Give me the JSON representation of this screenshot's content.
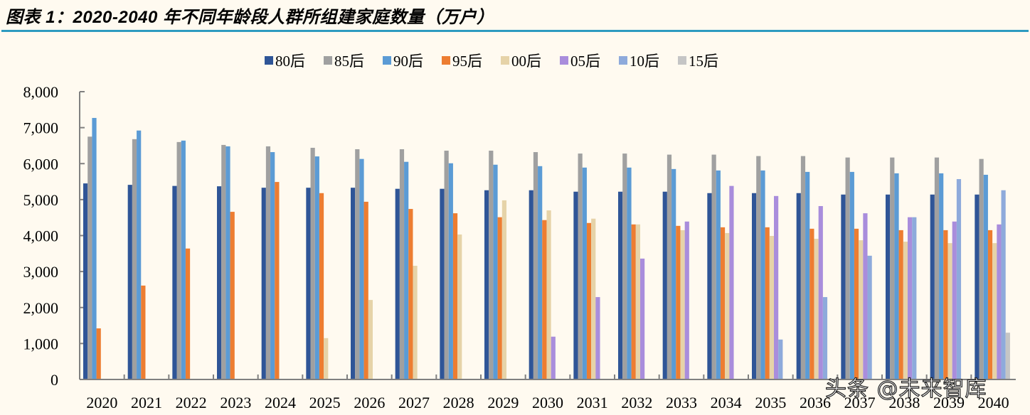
{
  "header": {
    "title": "图表 1：2020-2040 年不同年龄段人群所组建家庭数量（万户）"
  },
  "watermark": "头条 @未来智库",
  "chart_data": {
    "type": "bar",
    "title": "2020-2040 年不同年龄段人群所组建家庭数量（万户）",
    "xlabel": "",
    "ylabel": "",
    "ylim": [
      0,
      8000
    ],
    "yticks": [
      "0",
      "1,000",
      "2,000",
      "3,000",
      "4,000",
      "5,000",
      "6,000",
      "7,000",
      "8,000"
    ],
    "grid": false,
    "legend_position": "top",
    "categories": [
      "2020",
      "2021",
      "2022",
      "2023",
      "2024",
      "2025",
      "2026",
      "2027",
      "2028",
      "2029",
      "2030",
      "2031",
      "2032",
      "2033",
      "2034",
      "2035",
      "2036",
      "2037",
      "2038",
      "2039",
      "2040"
    ],
    "series": [
      {
        "name": "80后",
        "color": "#2f5597",
        "values": [
          5450,
          5410,
          5380,
          5370,
          5330,
          5330,
          5330,
          5300,
          5300,
          5260,
          5260,
          5220,
          5220,
          5220,
          5180,
          5180,
          5180,
          5140,
          5140,
          5140,
          5140
        ]
      },
      {
        "name": "85后",
        "color": "#a0a0a0",
        "values": [
          6750,
          6680,
          6600,
          6520,
          6480,
          6440,
          6400,
          6400,
          6360,
          6360,
          6320,
          6280,
          6280,
          6250,
          6250,
          6210,
          6210,
          6170,
          6170,
          6170,
          6130
        ]
      },
      {
        "name": "90后",
        "color": "#5b9bd5",
        "values": [
          7270,
          6920,
          6640,
          6480,
          6320,
          6200,
          6130,
          6050,
          6010,
          5970,
          5930,
          5890,
          5890,
          5850,
          5810,
          5810,
          5770,
          5770,
          5730,
          5730,
          5690
        ]
      },
      {
        "name": "95后",
        "color": "#ed7d31",
        "values": [
          1420,
          2610,
          3640,
          4660,
          5490,
          5180,
          4940,
          4740,
          4620,
          4510,
          4430,
          4350,
          4310,
          4270,
          4230,
          4230,
          4190,
          4190,
          4150,
          4150,
          4150
        ]
      },
      {
        "name": "00后",
        "color": "#e6d3a8",
        "values": [
          0,
          0,
          0,
          0,
          0,
          1150,
          2210,
          3160,
          4030,
          4980,
          4700,
          4470,
          4310,
          4150,
          4070,
          3990,
          3910,
          3870,
          3830,
          3790,
          3790
        ]
      },
      {
        "name": "05后",
        "color": "#a98ddc",
        "values": [
          0,
          0,
          0,
          0,
          0,
          0,
          0,
          0,
          0,
          0,
          1190,
          2290,
          3360,
          4390,
          5380,
          5100,
          4820,
          4620,
          4510,
          4390,
          4310
        ]
      },
      {
        "name": "10后",
        "color": "#8eaadb",
        "values": [
          0,
          0,
          0,
          0,
          0,
          0,
          0,
          0,
          0,
          0,
          0,
          0,
          0,
          0,
          0,
          1110,
          2290,
          3440,
          4510,
          5570,
          5260
        ]
      },
      {
        "name": "15后",
        "color": "#c5c5c5",
        "values": [
          0,
          0,
          0,
          0,
          0,
          0,
          0,
          0,
          0,
          0,
          0,
          0,
          0,
          0,
          0,
          0,
          0,
          0,
          0,
          0,
          1300
        ]
      }
    ]
  }
}
